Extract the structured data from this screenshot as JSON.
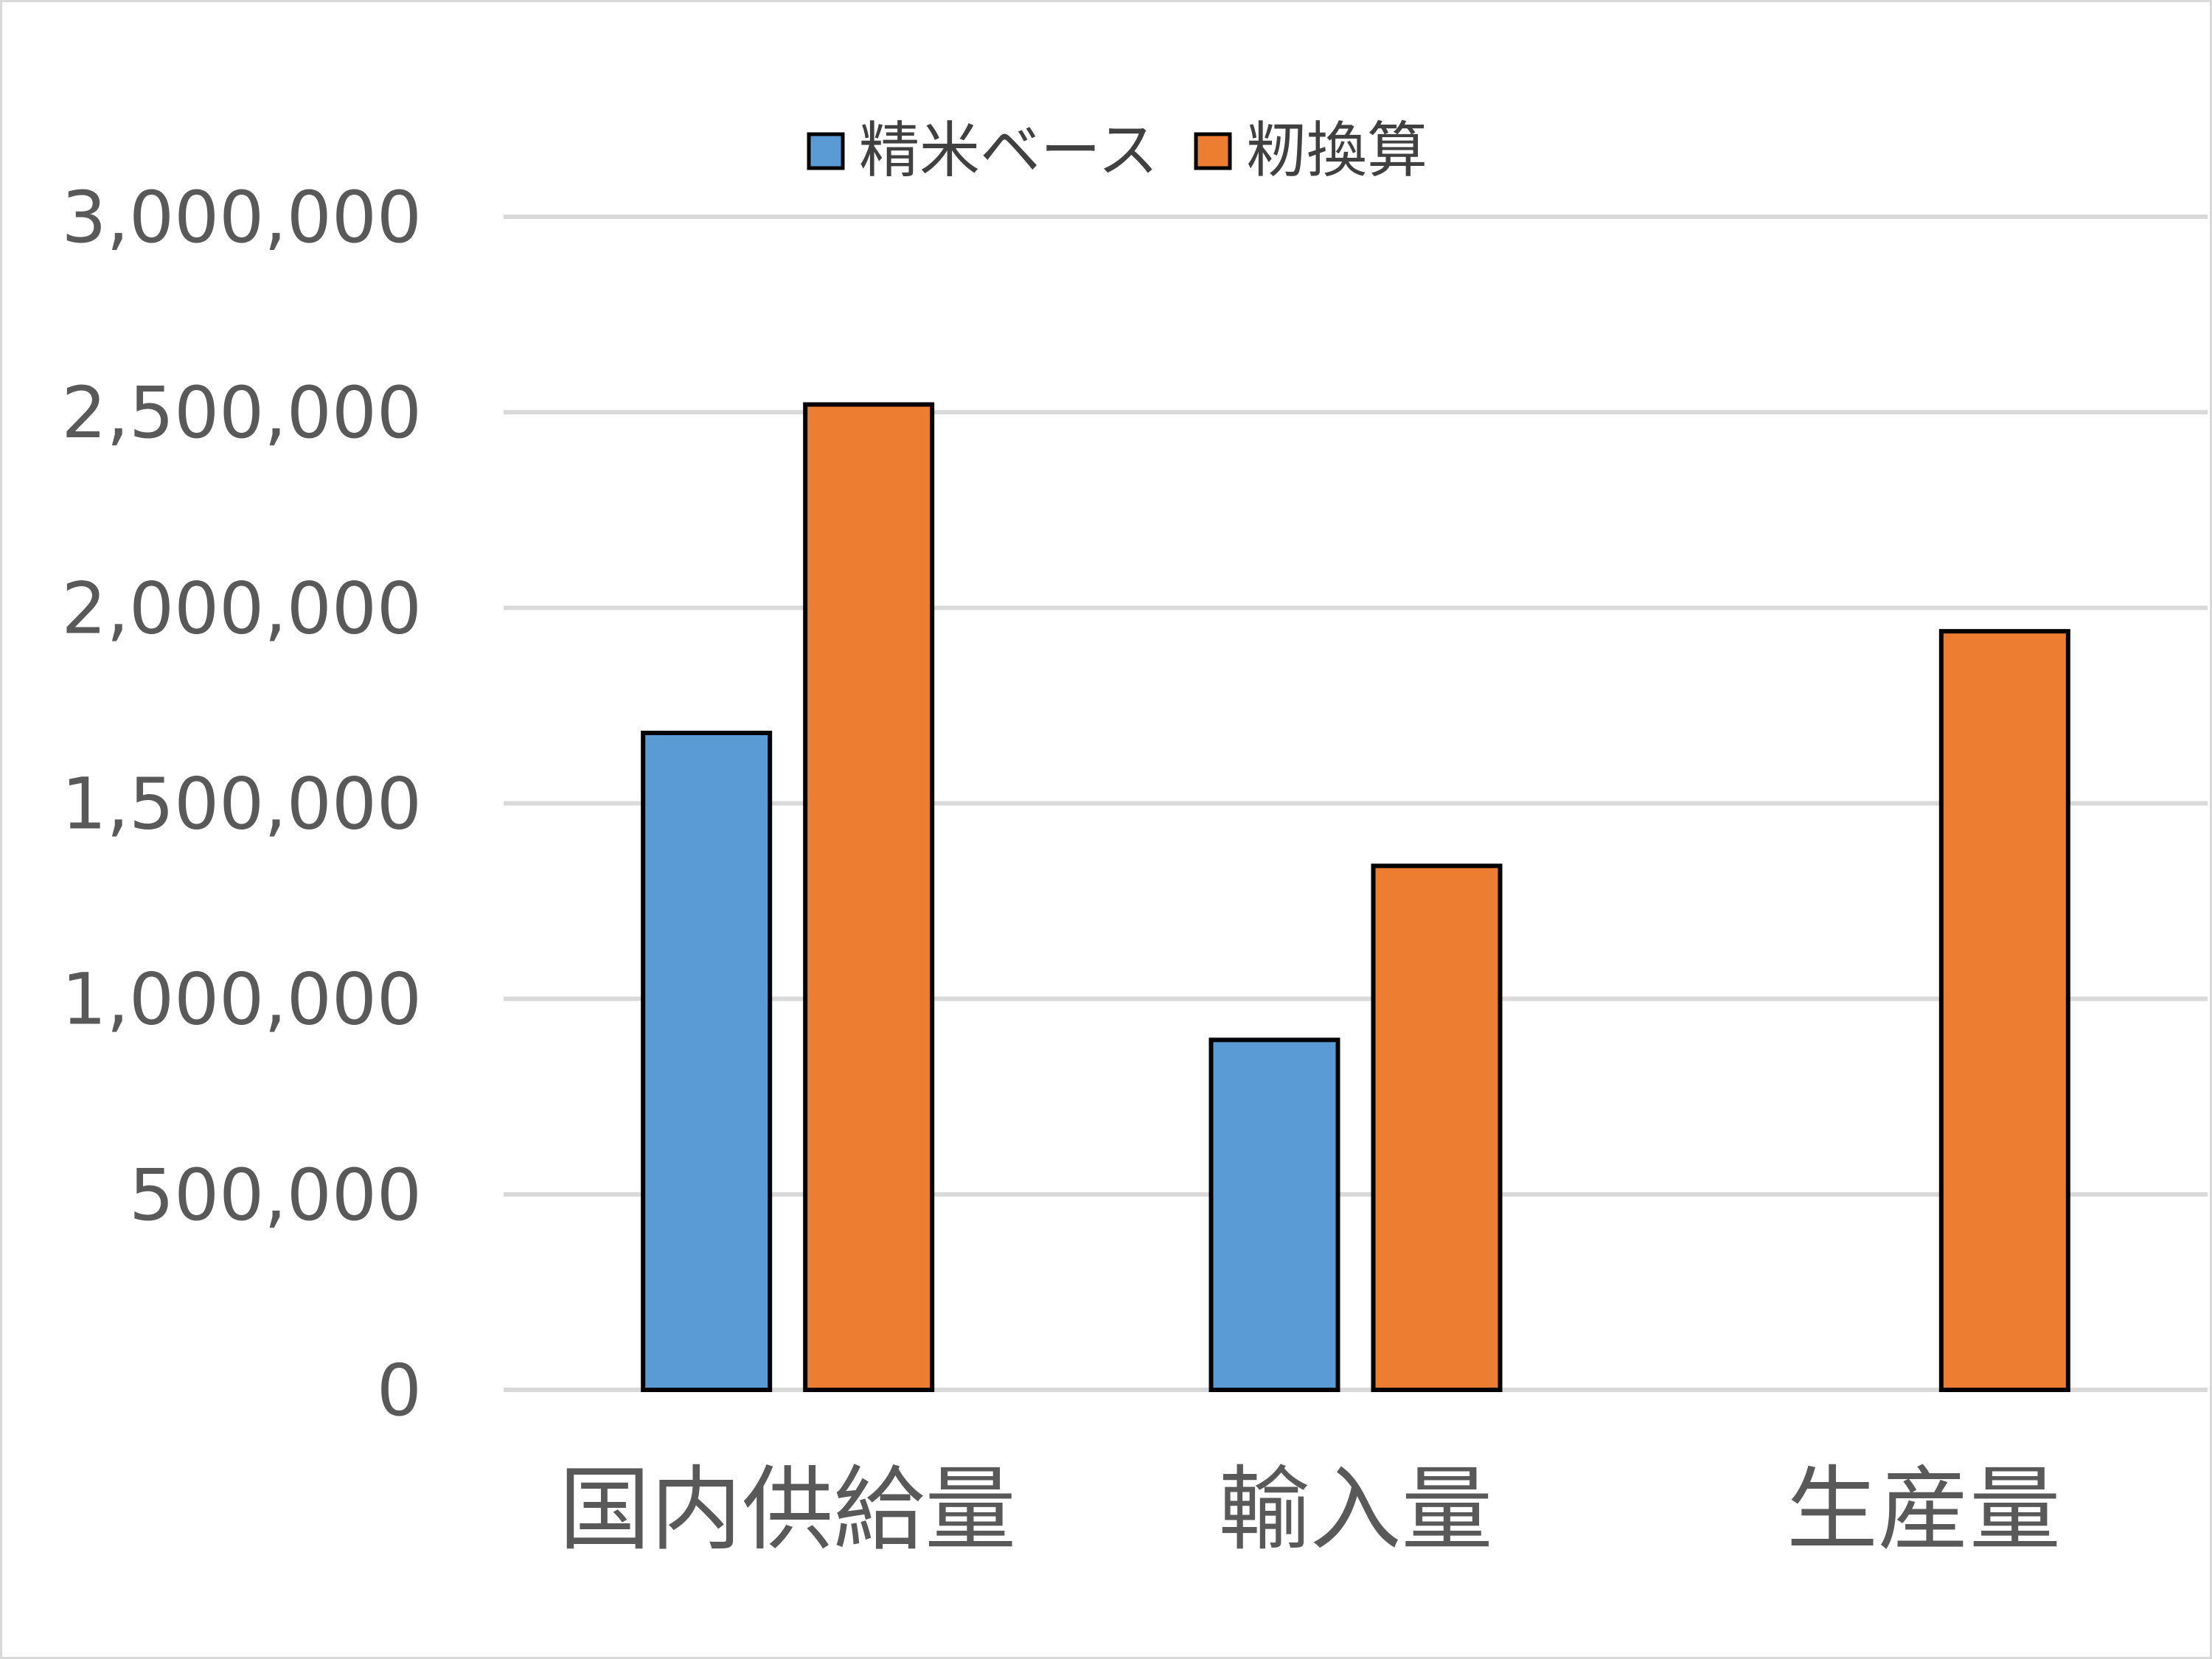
{
  "chart_data": {
    "type": "bar",
    "categories": [
      "国内供給量",
      "輸入量",
      "生産量"
    ],
    "series": [
      {
        "name": "精米ベース",
        "color": "#5b9bd5",
        "values": [
          1680000,
          895000,
          null
        ]
      },
      {
        "name": "籾換算",
        "color": "#ed7d31",
        "values": [
          2520000,
          1340000,
          1940000
        ]
      }
    ],
    "ylim": [
      0,
      3000000
    ],
    "yticks": [
      {
        "value": 0,
        "label": "0"
      },
      {
        "value": 500000,
        "label": "500,000"
      },
      {
        "value": 1000000,
        "label": "1,000,000"
      },
      {
        "value": 1500000,
        "label": "1,500,000"
      },
      {
        "value": 2000000,
        "label": "2,000,000"
      },
      {
        "value": 2500000,
        "label": "2,500,000"
      },
      {
        "value": 3000000,
        "label": "3,000,000"
      }
    ],
    "grid": true,
    "legend_position": "top"
  }
}
